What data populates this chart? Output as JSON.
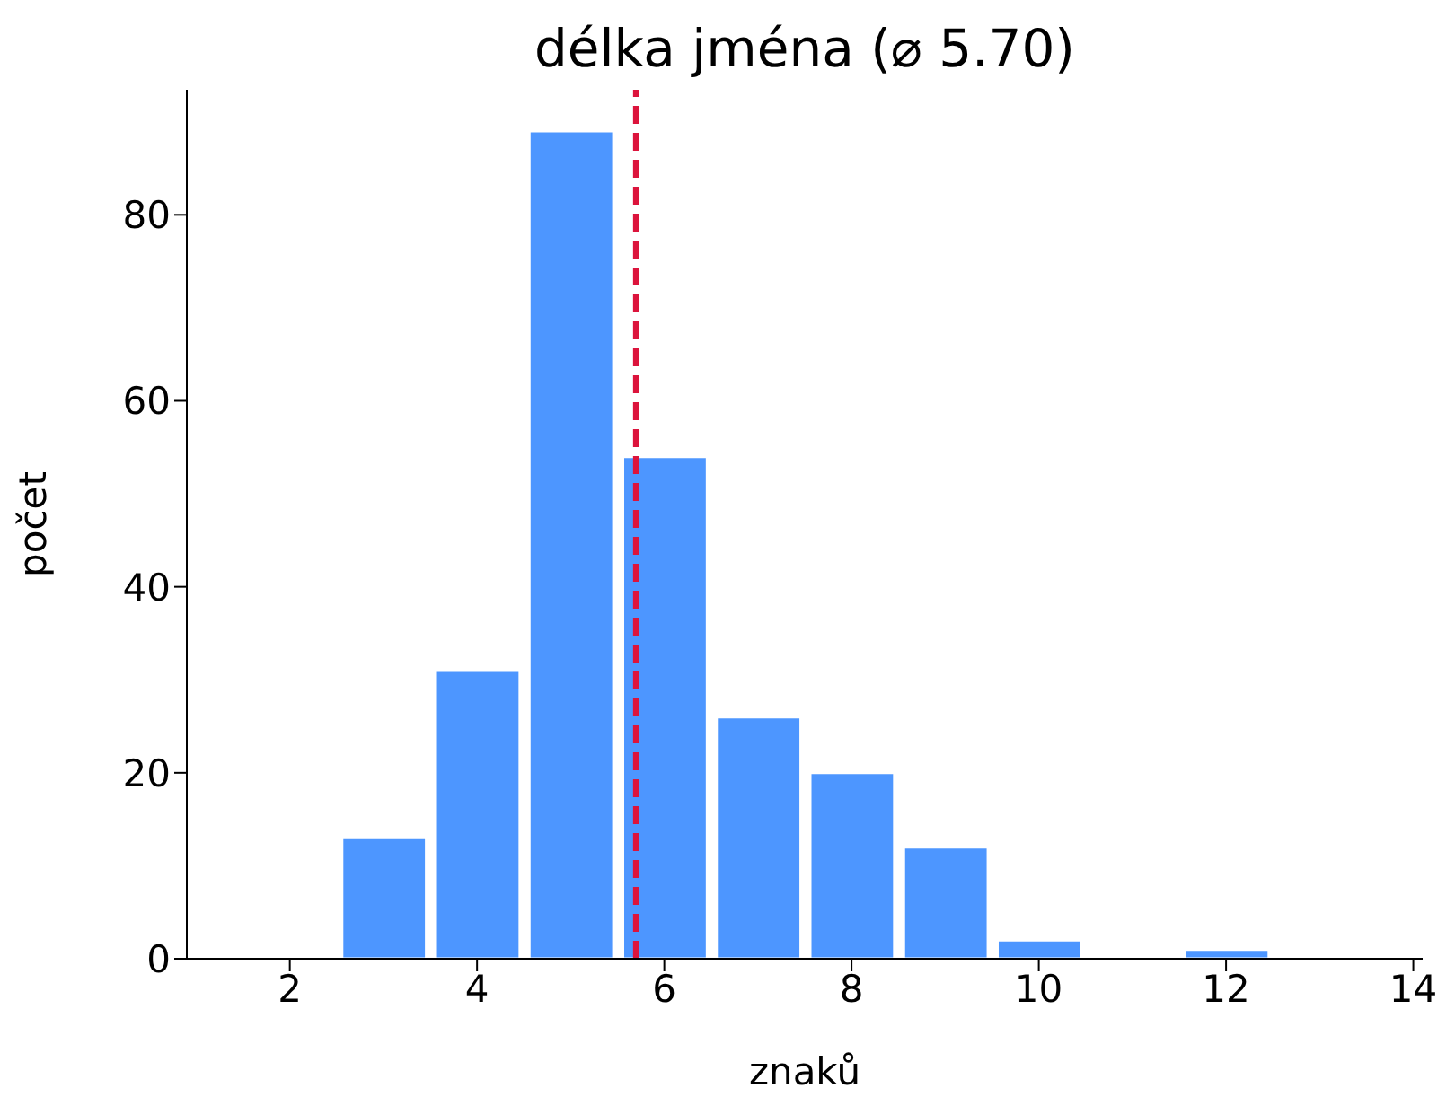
{
  "chart_data": {
    "type": "histogram",
    "title": "délka jména  (⌀ 5.70)",
    "xlabel": "znaků",
    "ylabel": "počet",
    "bins": [
      1.5,
      2.5,
      3.5,
      4.5,
      5.5,
      6.5,
      7.5,
      8.5,
      9.5,
      10.5,
      11.5,
      12.5,
      13.5
    ],
    "values": [
      0,
      13,
      31,
      89,
      54,
      26,
      20,
      12,
      2,
      0,
      1,
      0
    ],
    "color": "#4d96ff",
    "xlim": [
      0.9,
      14.1
    ],
    "xticks": [
      2,
      4,
      6,
      8,
      10,
      12,
      14
    ],
    "ylim": [
      0,
      93.45
    ],
    "yticks": [
      0,
      20,
      40,
      60,
      80
    ],
    "ref_lines": [
      {
        "axis": "x",
        "value": 5.7,
        "color": "#dc143c",
        "line_style": "dashed"
      }
    ],
    "grid": false,
    "legend": false
  }
}
